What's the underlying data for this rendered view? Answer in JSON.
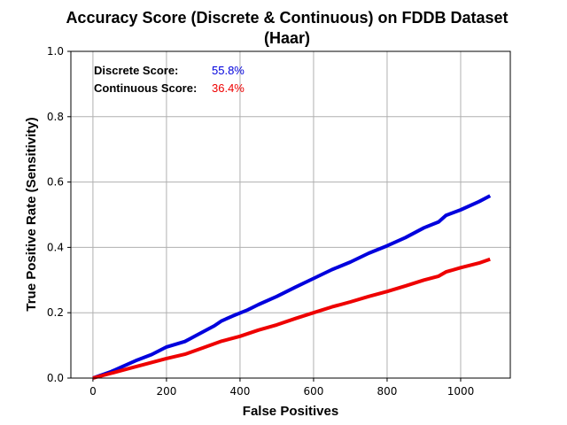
{
  "chart_data": {
    "type": "line",
    "title": "Accuracy Score (Discrete & Continuous) on FDDB Dataset",
    "subtitle": "(Haar)",
    "xlabel": "False Positives",
    "ylabel": "True Positive Rate (Sensitivity)",
    "xlim": [
      -60,
      1135
    ],
    "ylim": [
      0.0,
      1.0
    ],
    "x_ticks": [
      0,
      200,
      400,
      600,
      800,
      1000
    ],
    "y_ticks": [
      0.0,
      0.2,
      0.4,
      0.6,
      0.8,
      1.0
    ],
    "x_tick_labels": [
      "0",
      "200",
      "400",
      "600",
      "800",
      "1000"
    ],
    "y_tick_labels": [
      "0.0",
      "0.2",
      "0.4",
      "0.6",
      "0.8",
      "1.0"
    ],
    "grid": true,
    "series": [
      {
        "name": "Discrete Score",
        "color": "#0000dd",
        "x": [
          0,
          50,
          80,
          120,
          160,
          200,
          250,
          300,
          330,
          350,
          380,
          420,
          450,
          500,
          550,
          600,
          650,
          700,
          750,
          800,
          850,
          900,
          940,
          960,
          1000,
          1050,
          1080
        ],
        "y": [
          0.0,
          0.02,
          0.035,
          0.055,
          0.072,
          0.095,
          0.112,
          0.142,
          0.16,
          0.175,
          0.19,
          0.208,
          0.225,
          0.25,
          0.278,
          0.305,
          0.332,
          0.355,
          0.382,
          0.405,
          0.43,
          0.46,
          0.478,
          0.498,
          0.515,
          0.54,
          0.558
        ]
      },
      {
        "name": "Continuous Score",
        "color": "#ee0000",
        "x": [
          0,
          50,
          100,
          150,
          200,
          250,
          300,
          350,
          400,
          450,
          500,
          550,
          600,
          650,
          700,
          750,
          800,
          850,
          900,
          940,
          960,
          1000,
          1050,
          1080
        ],
        "y": [
          0.0,
          0.015,
          0.03,
          0.045,
          0.06,
          0.073,
          0.093,
          0.113,
          0.128,
          0.147,
          0.163,
          0.182,
          0.2,
          0.218,
          0.233,
          0.25,
          0.265,
          0.282,
          0.3,
          0.312,
          0.325,
          0.338,
          0.352,
          0.364
        ]
      }
    ],
    "annotations": [
      {
        "label": "Discrete Score:",
        "value": "55.8%",
        "color": "#0000dd"
      },
      {
        "label": "Continuous Score:",
        "value": "36.4%",
        "color": "#ee0000"
      }
    ]
  }
}
